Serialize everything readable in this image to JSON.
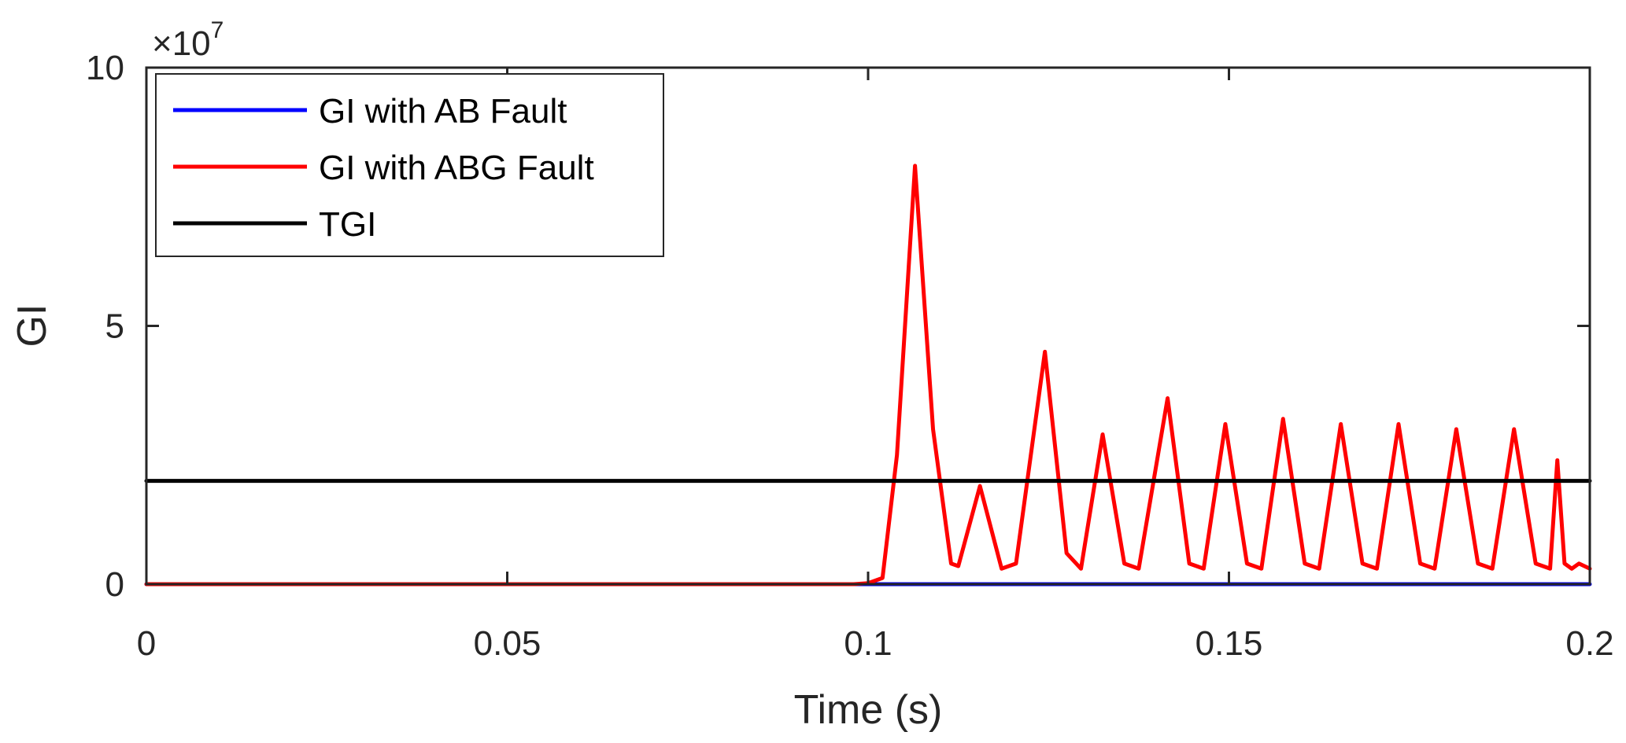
{
  "chart_data": {
    "type": "line",
    "xlabel": "Time (s)",
    "ylabel": "GI",
    "xlim": [
      0,
      0.2
    ],
    "ylim": [
      0,
      100000000
    ],
    "x_ticks": [
      0,
      0.05,
      0.1,
      0.15,
      0.2
    ],
    "x_tick_labels": [
      "0",
      "0.05",
      "0.1",
      "0.15",
      "0.2"
    ],
    "y_ticks": [
      0,
      50000000,
      100000000
    ],
    "y_tick_labels": [
      "0",
      "5",
      "10"
    ],
    "y_exponent_label": {
      "prefix": "×10",
      "power": "7"
    },
    "grid": false,
    "legend_position": "top-left",
    "series": [
      {
        "name": "GI with AB Fault",
        "color": "#0000ff",
        "x": [
          0,
          0.2
        ],
        "y": [
          0,
          0
        ]
      },
      {
        "name": "GI with ABG Fault",
        "color": "#ff0000",
        "x": [
          0,
          0.098,
          0.1,
          0.102,
          0.104,
          0.1065,
          0.109,
          0.1115,
          0.1125,
          0.1155,
          0.1185,
          0.1205,
          0.1245,
          0.1275,
          0.1295,
          0.1325,
          0.1355,
          0.1375,
          0.1415,
          0.1445,
          0.1465,
          0.1495,
          0.1525,
          0.1545,
          0.1575,
          0.1605,
          0.1625,
          0.1655,
          0.1685,
          0.1705,
          0.1735,
          0.1765,
          0.1785,
          0.1815,
          0.1845,
          0.1865,
          0.1895,
          0.1925,
          0.1945,
          0.1955,
          0.1965,
          0.1975,
          0.1985,
          0.2
        ],
        "y": [
          0,
          0,
          200000,
          1200000,
          25000000,
          81000000,
          30000000,
          4000000,
          3500000,
          19000000,
          3000000,
          4000000,
          45000000,
          6000000,
          3000000,
          29000000,
          4000000,
          3000000,
          36000000,
          4000000,
          3000000,
          31000000,
          4000000,
          3000000,
          32000000,
          4000000,
          3000000,
          31000000,
          4000000,
          3000000,
          31000000,
          4000000,
          3000000,
          30000000,
          4000000,
          3000000,
          30000000,
          4000000,
          3000000,
          24000000,
          4000000,
          3000000,
          4000000,
          3000000
        ]
      },
      {
        "name": "TGI",
        "color": "#000000",
        "x": [
          0,
          0.2
        ],
        "y": [
          20000000,
          20000000
        ]
      }
    ]
  }
}
